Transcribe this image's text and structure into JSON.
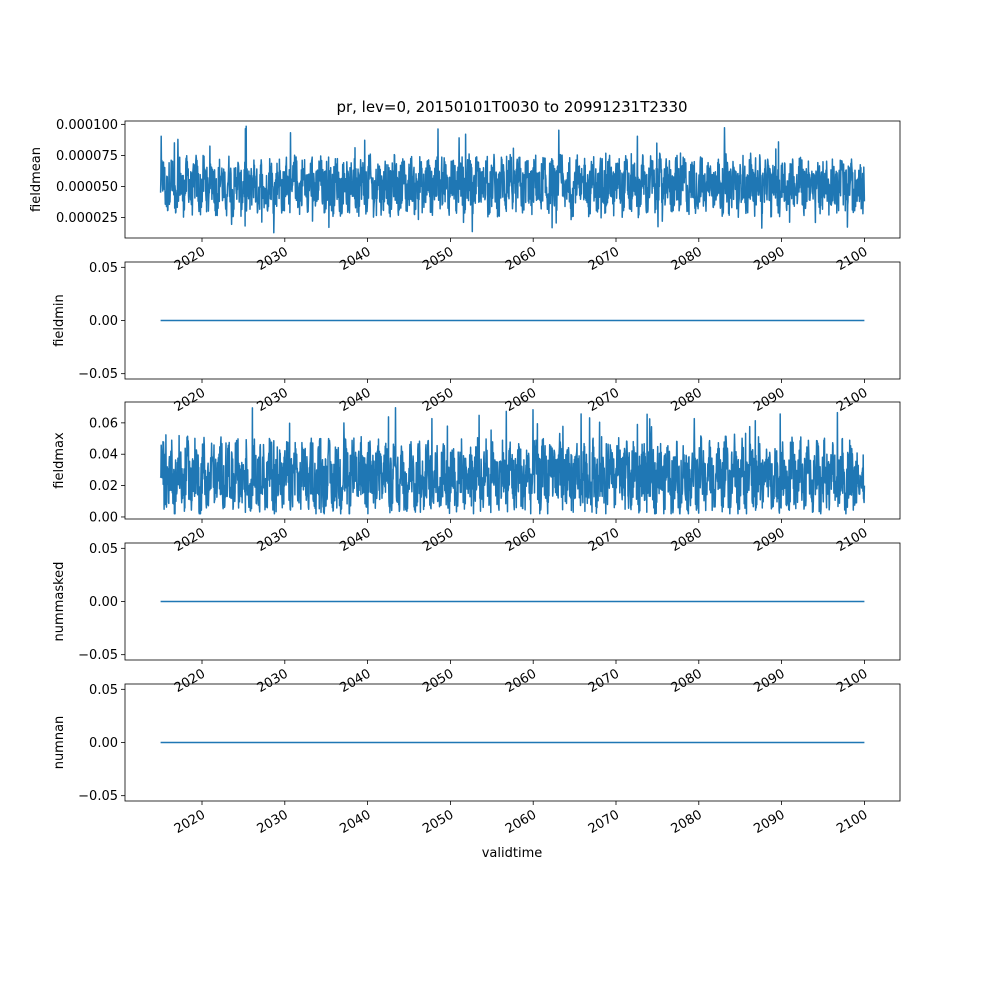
{
  "chart_data": {
    "type": "line",
    "title": "pr, lev=0, 20150101T0030 to 20991231T2330",
    "xlabel": "validtime",
    "line_color": "#1f77b4",
    "x_range": [
      "2015-01-01T00:30",
      "2099-12-31T23:30"
    ],
    "xlim": [
      2010.7,
      2104.3
    ],
    "x_ticks": [
      2020,
      2030,
      2040,
      2050,
      2060,
      2070,
      2080,
      2090,
      2100
    ],
    "x_tick_labels": [
      "2020",
      "2030",
      "2040",
      "2050",
      "2060",
      "2070",
      "2080",
      "2090",
      "2100"
    ],
    "panels": [
      {
        "ylabel": "fieldmean",
        "ylim": [
          8.5e-06,
          0.0001027
        ],
        "y_ticks": [
          2.5e-05,
          5e-05,
          7.5e-05,
          0.0001
        ],
        "y_tick_labels": [
          "0.000025",
          "0.000050",
          "0.000075",
          "0.000100"
        ],
        "series": {
          "kind": "noisy",
          "typical_low": 3.1e-05,
          "typical_high": 7.1e-05,
          "min": 1.25e-05,
          "max": 9.95e-05,
          "start_value": 4.5e-05,
          "end_value": 3.8e-05
        }
      },
      {
        "ylabel": "fieldmin",
        "ylim": [
          -0.055,
          0.055
        ],
        "y_ticks": [
          -0.05,
          0,
          0.05
        ],
        "y_tick_labels": [
          "−0.05",
          "0.00",
          "0.05"
        ],
        "series": {
          "kind": "constant",
          "value": 0
        }
      },
      {
        "ylabel": "fieldmax",
        "ylim": [
          -0.0013,
          0.0733
        ],
        "y_ticks": [
          0,
          0.02,
          0.04,
          0.06
        ],
        "y_tick_labels": [
          "0.00",
          "0.02",
          "0.04",
          "0.06"
        ],
        "series": {
          "kind": "noisy",
          "typical_low": 0.006,
          "typical_high": 0.046,
          "min": 0.002,
          "max": 0.07,
          "start_value": 0.025,
          "end_value": 0.02
        }
      },
      {
        "ylabel": "nummasked",
        "ylim": [
          -0.055,
          0.055
        ],
        "y_ticks": [
          -0.05,
          0,
          0.05
        ],
        "y_tick_labels": [
          "−0.05",
          "0.00",
          "0.05"
        ],
        "series": {
          "kind": "constant",
          "value": 0
        }
      },
      {
        "ylabel": "numnan",
        "ylim": [
          -0.055,
          0.055
        ],
        "y_ticks": [
          -0.05,
          0,
          0.05
        ],
        "y_tick_labels": [
          "−0.05",
          "0.00",
          "0.05"
        ],
        "series": {
          "kind": "constant",
          "value": 0
        }
      }
    ]
  }
}
